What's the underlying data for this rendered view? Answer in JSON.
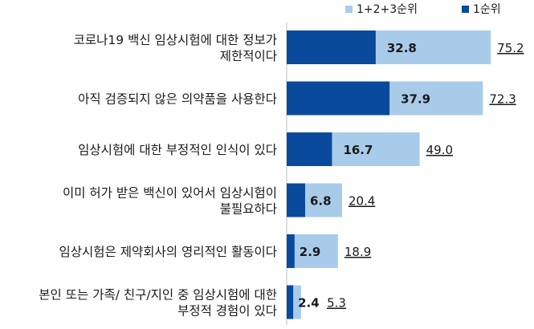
{
  "chart_data": {
    "type": "bar",
    "orientation": "horizontal",
    "categories": [
      [
        "코로나19 백신 임상시험에 대한 정보가",
        "제한적이다"
      ],
      [
        "아직 검증되지 않은 의약품을 사용한다"
      ],
      [
        "임상시험에 대한 부정적인 인식이 있다"
      ],
      [
        "이미 허가 받은 백신이 있어서 임상시험이",
        "불필요하다"
      ],
      [
        "임상시험은 제약회사의 영리적인 활동이다"
      ],
      [
        "본인 또는 가족/ 친구/지인 중 임상시험에 대한",
        "부정적 경험이 있다"
      ]
    ],
    "series": [
      {
        "name": "1+2+3순위",
        "color": "#a9cbea",
        "values": [
          75.2,
          72.3,
          49.0,
          20.4,
          18.9,
          5.3
        ],
        "labels": [
          "75.2",
          "72.3",
          "49.0",
          "20.4",
          "18.9",
          "5.3"
        ]
      },
      {
        "name": "1순위",
        "color": "#0a4a9c",
        "values": [
          32.8,
          37.9,
          16.7,
          6.8,
          2.9,
          2.4
        ],
        "labels": [
          "32.8",
          "37.9",
          "16.7",
          "6.8",
          "2.9",
          "2.4"
        ]
      }
    ],
    "legend_position": "top-right",
    "grid": false
  }
}
